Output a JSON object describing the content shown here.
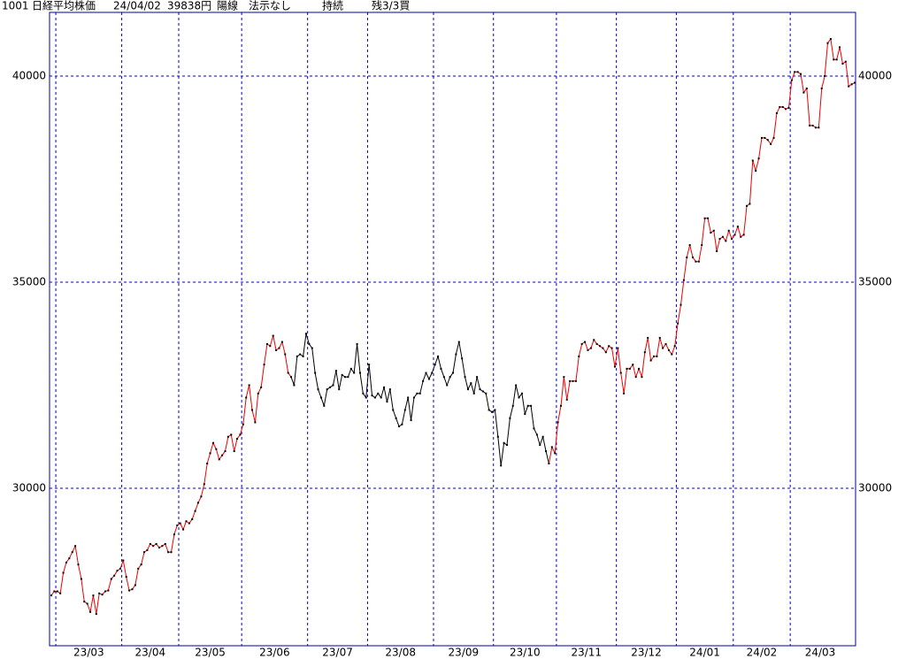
{
  "header": {
    "code": "1001",
    "name": "日経平均株価",
    "date": "24/04/02",
    "price": "39838円",
    "candle": "陽線",
    "rule": "法示なし",
    "status": "持続",
    "position": "残3/3買"
  },
  "chart_data": {
    "type": "line",
    "ylim": [
      26180,
      41545
    ],
    "yticks": [
      30000,
      35000,
      40000
    ],
    "grid": true,
    "months": [
      {
        "label": null,
        "values": [
          27400,
          27500
        ],
        "colors": [
          "#e00",
          "#e00"
        ]
      },
      {
        "label": "23/03",
        "values": [
          27500,
          27450,
          27950,
          28200,
          28300,
          28450,
          28600,
          28150,
          27800,
          27250,
          27200,
          27000,
          27400,
          26950,
          27450,
          27420,
          27500,
          27520,
          27800,
          27880,
          28000,
          28050
        ],
        "colors": [
          "#e00",
          "#e00",
          "#e00",
          "#e00",
          "#e00",
          "#e00",
          "#e00",
          "#e00",
          "#e00",
          "#e00",
          "#e00",
          "#e00",
          "#e00",
          "#e00",
          "#e00",
          "#e00",
          "#e00",
          "#e00",
          "#e00",
          "#e00",
          "#e00",
          "#e00"
        ]
      },
      {
        "label": "23/04",
        "values": [
          28250,
          27850,
          27520,
          27550,
          27650,
          28050,
          28150,
          28450,
          28500,
          28650,
          28600,
          28650,
          28560,
          28600,
          28650,
          28450,
          28450,
          28880,
          29100
        ],
        "colors": [
          "#e00",
          "#e00",
          "#e00",
          "#e00",
          "#e00",
          "#e00",
          "#e00",
          "#e00",
          "#e00",
          "#e00",
          "#e00",
          "#e00",
          "#e00",
          "#e00",
          "#e00",
          "#e00",
          "#e00",
          "#e00",
          "#e00"
        ]
      },
      {
        "label": "23/05",
        "values": [
          29150,
          29000,
          29200,
          29150,
          29250,
          29450,
          29650,
          29800,
          30100,
          30600,
          30850,
          31100,
          30950,
          30700,
          30800,
          30900,
          31250,
          31300,
          30900,
          31200,
          31300
        ],
        "colors": [
          "#e00",
          "#e00",
          "#e00",
          "#e00",
          "#e00",
          "#e00",
          "#e00",
          "#e00",
          "#e00",
          "#e00",
          "#e00",
          "#e00",
          "#e00",
          "#e00",
          "#e00",
          "#e00",
          "#e00",
          "#e00",
          "#e00",
          "#e00",
          "#e00"
        ]
      },
      {
        "label": "23/06",
        "values": [
          31550,
          32200,
          32500,
          31900,
          31600,
          32300,
          32450,
          33000,
          33500,
          33450,
          33700,
          33350,
          33400,
          33550,
          33250,
          32800,
          32700,
          32500,
          33200,
          33250,
          33200,
          33750
        ],
        "colors": [
          "#e00",
          "#e00",
          "#e00",
          "#e00",
          "#e00",
          "#e00",
          "#e00",
          "#e00",
          "#e00",
          "#e00",
          "#e00",
          "#e00",
          "#e00",
          "#e00",
          "#e00",
          "#e00",
          "#e00",
          "#000",
          "#000",
          "#000",
          "#000",
          "#000"
        ]
      },
      {
        "label": "23/07",
        "values": [
          33500,
          33400,
          32800,
          32400,
          32200,
          32000,
          32400,
          32450,
          32500,
          32850,
          32400,
          32750,
          32700,
          32700,
          32900,
          32800,
          33500,
          32800,
          32300,
          32200
        ],
        "colors": [
          "#000",
          "#000",
          "#000",
          "#000",
          "#000",
          "#000",
          "#000",
          "#000",
          "#000",
          "#000",
          "#000",
          "#000",
          "#000",
          "#000",
          "#000",
          "#000",
          "#000",
          "#000",
          "#000",
          "#000"
        ]
      },
      {
        "label": "23/08",
        "values": [
          33000,
          32250,
          32200,
          32300,
          32200,
          32450,
          32100,
          32400,
          31900,
          31700,
          31500,
          31550,
          31900,
          32200,
          31650,
          32200,
          32300,
          32300,
          32600,
          32800,
          32650,
          32800
        ],
        "colors": [
          "#000",
          "#000",
          "#000",
          "#000",
          "#000",
          "#000",
          "#000",
          "#000",
          "#000",
          "#000",
          "#000",
          "#000",
          "#000",
          "#000",
          "#000",
          "#000",
          "#000",
          "#000",
          "#000",
          "#000",
          "#000",
          "#000"
        ]
      },
      {
        "label": "23/09",
        "values": [
          33000,
          33200,
          32900,
          32700,
          32500,
          32700,
          32800,
          33250,
          33550,
          33150,
          32700,
          32400,
          32550,
          32300,
          32700,
          32400,
          32350,
          32300,
          31900,
          31850
        ],
        "colors": [
          "#000",
          "#000",
          "#000",
          "#000",
          "#000",
          "#000",
          "#000",
          "#000",
          "#000",
          "#000",
          "#000",
          "#000",
          "#000",
          "#000",
          "#000",
          "#000",
          "#000",
          "#000",
          "#000",
          "#000"
        ]
      },
      {
        "label": "23/10",
        "values": [
          31900,
          31250,
          30550,
          31100,
          31050,
          31700,
          32000,
          32500,
          32200,
          32300,
          31800,
          32000,
          32000,
          31450,
          31300,
          31050,
          31250,
          30900,
          30600,
          31000,
          30850
        ],
        "colors": [
          "#000",
          "#000",
          "#000",
          "#000",
          "#000",
          "#000",
          "#000",
          "#000",
          "#000",
          "#000",
          "#000",
          "#000",
          "#000",
          "#000",
          "#000",
          "#000",
          "#000",
          "#000",
          "#000",
          "#e00",
          "#e00"
        ]
      },
      {
        "label": "23/11",
        "values": [
          31600,
          32000,
          32700,
          32150,
          32600,
          32600,
          32600,
          33200,
          33500,
          33550,
          33350,
          33400,
          33600,
          33500,
          33450,
          33400,
          33300,
          33450,
          33400,
          32950
        ],
        "colors": [
          "#e00",
          "#e00",
          "#e00",
          "#e00",
          "#e00",
          "#e00",
          "#e00",
          "#e00",
          "#e00",
          "#e00",
          "#e00",
          "#e00",
          "#e00",
          "#e00",
          "#e00",
          "#e00",
          "#e00",
          "#e00",
          "#e00",
          "#e00"
        ]
      },
      {
        "label": "23/12",
        "values": [
          33400,
          32800,
          32300,
          32900,
          32900,
          33000,
          32700,
          32900,
          32700,
          33300,
          33650,
          33100,
          33200,
          33200,
          33650,
          33400,
          33500,
          33350,
          33250,
          33450
        ],
        "colors": [
          "#e00",
          "#e00",
          "#e00",
          "#e00",
          "#e00",
          "#e00",
          "#e00",
          "#e00",
          "#e00",
          "#e00",
          "#e00",
          "#e00",
          "#e00",
          "#e00",
          "#e00",
          "#e00",
          "#e00",
          "#e00",
          "#e00",
          "#e00"
        ]
      },
      {
        "label": "24/01",
        "values": [
          34000,
          34450,
          35050,
          35600,
          35900,
          35600,
          35500,
          35500,
          35900,
          36550,
          36550,
          36200,
          36250,
          35750,
          36050,
          36100,
          36000,
          36250,
          36050
        ],
        "colors": [
          "#e00",
          "#e00",
          "#e00",
          "#e00",
          "#e00",
          "#e00",
          "#e00",
          "#e00",
          "#e00",
          "#e00",
          "#e00",
          "#e00",
          "#e00",
          "#e00",
          "#e00",
          "#e00",
          "#e00",
          "#e00",
          "#e00"
        ]
      },
      {
        "label": "24/02",
        "values": [
          36150,
          36350,
          36100,
          36150,
          36850,
          36900,
          37950,
          37700,
          38000,
          38500,
          38500,
          38450,
          38350,
          38500,
          39100,
          39250,
          39250,
          39200,
          39230
        ],
        "colors": [
          "#e00",
          "#e00",
          "#e00",
          "#e00",
          "#e00",
          "#e00",
          "#e00",
          "#e00",
          "#e00",
          "#e00",
          "#e00",
          "#e00",
          "#e00",
          "#e00",
          "#e00",
          "#e00",
          "#e00",
          "#e00",
          "#e00"
        ]
      },
      {
        "label": "24/03",
        "values": [
          39900,
          40100,
          40100,
          40050,
          39600,
          39700,
          38800,
          38800,
          38750,
          38750,
          39700,
          40000,
          40800,
          40900,
          40400,
          40400,
          40700,
          40300,
          40350,
          39750
        ],
        "colors": [
          "#e00",
          "#e00",
          "#e00",
          "#e00",
          "#e00",
          "#e00",
          "#e00",
          "#e00",
          "#e00",
          "#e00",
          "#e00",
          "#e00",
          "#e00",
          "#e00",
          "#e00",
          "#e00",
          "#e00",
          "#e00",
          "#e00",
          "#e00"
        ]
      },
      {
        "label": null,
        "values": [
          39800,
          39838
        ],
        "colors": [
          "#e00",
          "#e00"
        ]
      }
    ]
  }
}
